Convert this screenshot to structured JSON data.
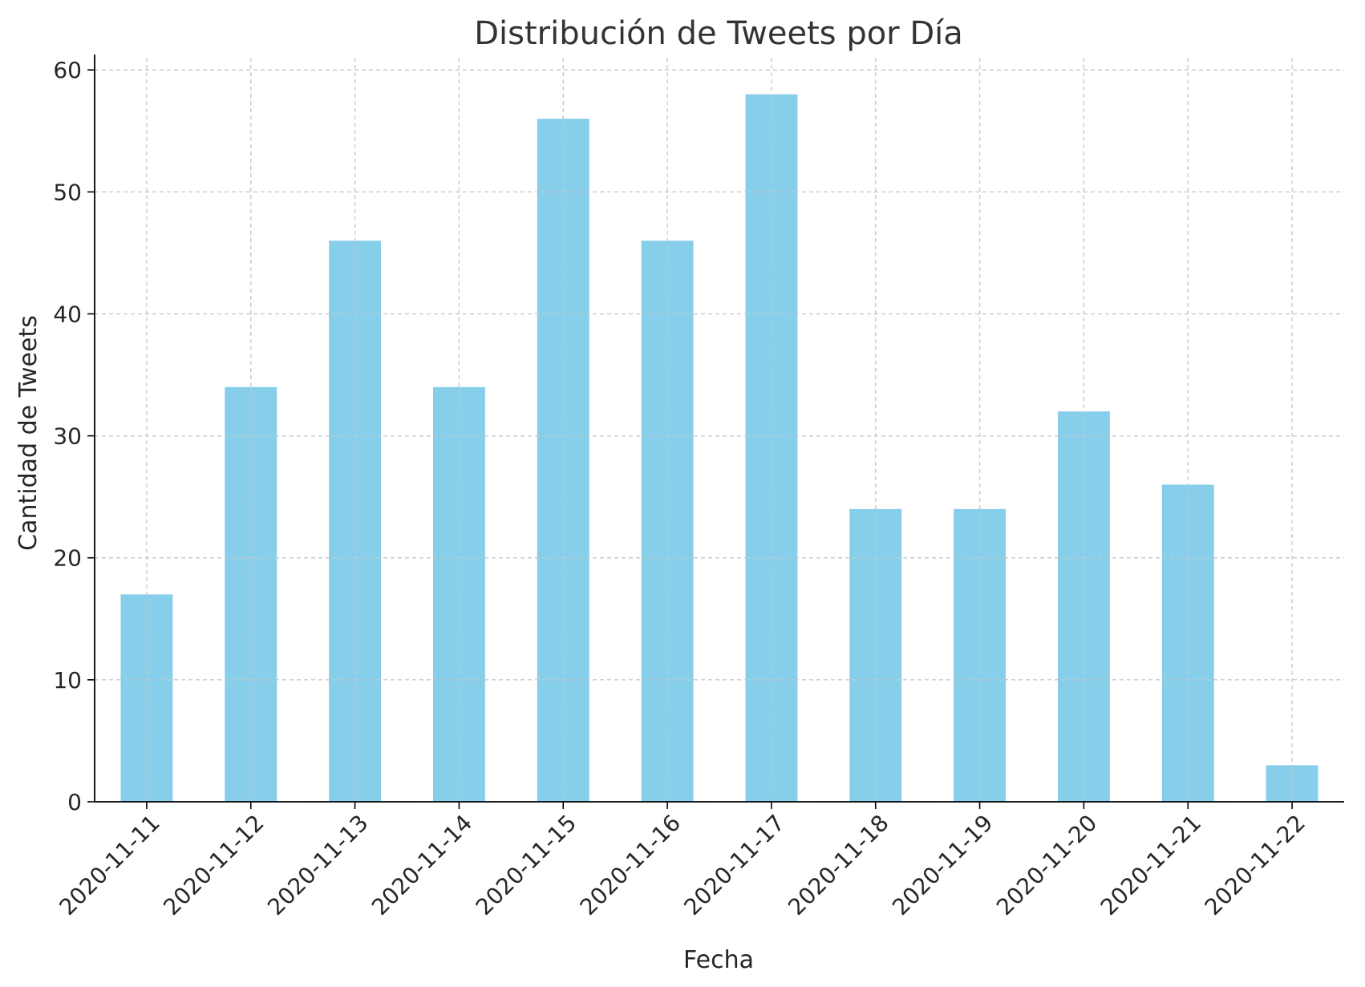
{
  "chart_data": {
    "type": "bar",
    "title": "Distribución de Tweets por Día",
    "xlabel": "Fecha",
    "ylabel": "Cantidad de Tweets",
    "categories": [
      "2020-11-11",
      "2020-11-12",
      "2020-11-13",
      "2020-11-14",
      "2020-11-15",
      "2020-11-16",
      "2020-11-17",
      "2020-11-18",
      "2020-11-19",
      "2020-11-20",
      "2020-11-21",
      "2020-11-22"
    ],
    "values": [
      17,
      34,
      46,
      34,
      56,
      46,
      58,
      24,
      24,
      32,
      26,
      3
    ],
    "ylim": [
      0,
      61
    ],
    "yticks": [
      0,
      10,
      20,
      30,
      40,
      50,
      60
    ],
    "grid": true,
    "legend": "none",
    "colors": {
      "bar": "#87ceeb",
      "grid": "#c8c8c8",
      "axis": "#000000"
    }
  }
}
